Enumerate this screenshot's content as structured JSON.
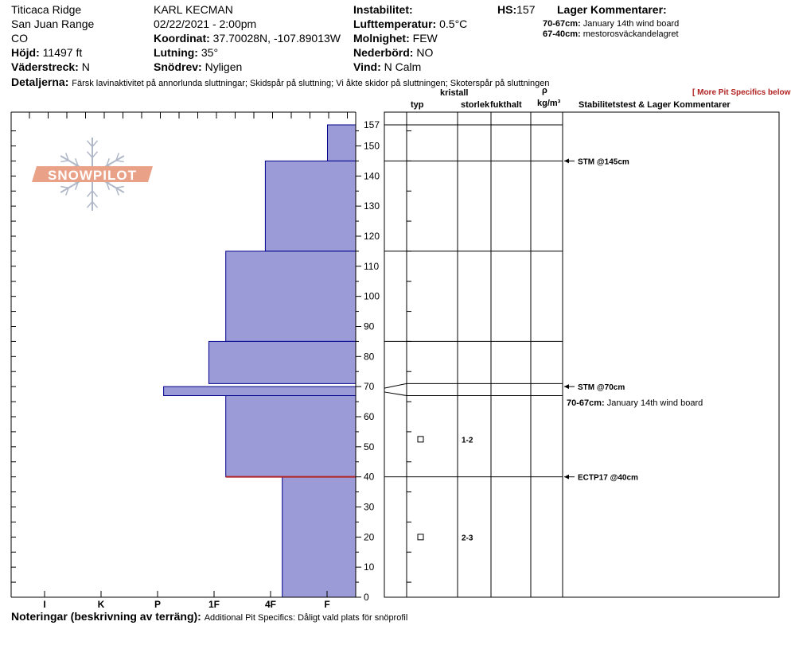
{
  "header": {
    "location": "Titicaca Ridge",
    "range": "San Juan Range",
    "state": "CO",
    "elevation_label": "Höjd:",
    "elevation_value": "11497 ft",
    "aspect_label": "Väderstreck:",
    "aspect_value": "N",
    "observer": "KARL KECMAN",
    "datetime": "02/22/2021 - 2:00pm",
    "coord_label": "Koordinat:",
    "coord_value": "37.70028N, -107.89013W",
    "slope_label": "Lutning:",
    "slope_value": "35°",
    "drift_label": "Snödrev:",
    "drift_value": "Nyligen",
    "instability_label": "Instabilitet:",
    "airtemp_label": "Lufttemperatur:",
    "airtemp_value": "0.5°C",
    "sky_label": "Molnighet:",
    "sky_value": "FEW",
    "precip_label": "Nederbörd:",
    "precip_value": "NO",
    "wind_label": "Vind:",
    "wind_value": "N Calm",
    "hs_label": "HS:",
    "hs_value": "157",
    "layer_comments_title": "Lager Kommentarer:",
    "layer_comments": [
      {
        "range": "70-67cm:",
        "text": "January 14th wind board"
      },
      {
        "range": "67-40cm:",
        "text": "mestorosväckandelagret"
      }
    ],
    "details_label": "Detaljerna:",
    "details_value": "Färsk lavinaktivitet på annorlunda sluttningar; Skidspår på sluttning; Vi åkte skidor på sluttningen; Skoterspår på sluttningen",
    "more_link": "[ More Pit Specifics below ]"
  },
  "logo_text": "SNOWPILOT",
  "columns": {
    "crystal": "kristall",
    "type": "typ",
    "size": "storlek",
    "moisture": "fukthalt",
    "rho": "ρ",
    "density_unit": "kg/m³",
    "stability": "Stabilitetstest & Lager Kommentarer"
  },
  "footer": {
    "notes_label": "Noteringar (beskrivning av terräng):",
    "notes_value": "Additional Pit Specifics: Dåligt vald plats för snöprofil"
  },
  "chart_data": {
    "type": "bar",
    "orientation": "horizontal",
    "ylim": [
      0,
      157
    ],
    "yticks": [
      0,
      10,
      20,
      30,
      40,
      50,
      60,
      70,
      80,
      90,
      100,
      110,
      120,
      130,
      140,
      150,
      157
    ],
    "hardness_scale": [
      "I",
      "K",
      "P",
      "1F",
      "4F",
      "F"
    ],
    "hardness_ticks": [
      {
        "label": "I",
        "value": 5
      },
      {
        "label": "K",
        "value": 4
      },
      {
        "label": "P",
        "value": 3
      },
      {
        "label": "1F",
        "value": 2
      },
      {
        "label": "4F",
        "value": 1
      },
      {
        "label": "F",
        "value": 0
      }
    ],
    "layers": [
      {
        "top": 157,
        "bottom": 145,
        "hardness": 0.5
      },
      {
        "top": 145,
        "bottom": 115,
        "hardness": 1.6
      },
      {
        "top": 115,
        "bottom": 85,
        "hardness": 2.3
      },
      {
        "top": 85,
        "bottom": 71,
        "hardness": 2.6
      },
      {
        "top": 70,
        "bottom": 67,
        "hardness": 3.4
      },
      {
        "top": 67,
        "bottom": 40,
        "hardness": 2.3
      },
      {
        "top": 40,
        "bottom": 0,
        "hardness": 1.3
      }
    ],
    "interfaces": [
      157,
      145,
      115,
      85,
      71,
      67,
      40
    ],
    "weak_layer": 40,
    "grains": [
      {
        "depth": 52.5,
        "size": "1-2"
      },
      {
        "depth": 20,
        "size": "2-3"
      }
    ],
    "tests": [
      {
        "depth": 145,
        "label": "STM @145cm"
      },
      {
        "depth": 70,
        "label": "STM @70cm"
      },
      {
        "depth": 40,
        "label": "ECTP17 @40cm"
      }
    ],
    "layer_note": {
      "depth": 70,
      "range": "70-67cm:",
      "text": "January 14th wind board"
    },
    "colors": {
      "fill": "#9b9bd7",
      "stroke": "#00008b",
      "weak": "#b22222",
      "logo": "#e9a187",
      "flake": "#b0b8c8"
    }
  }
}
